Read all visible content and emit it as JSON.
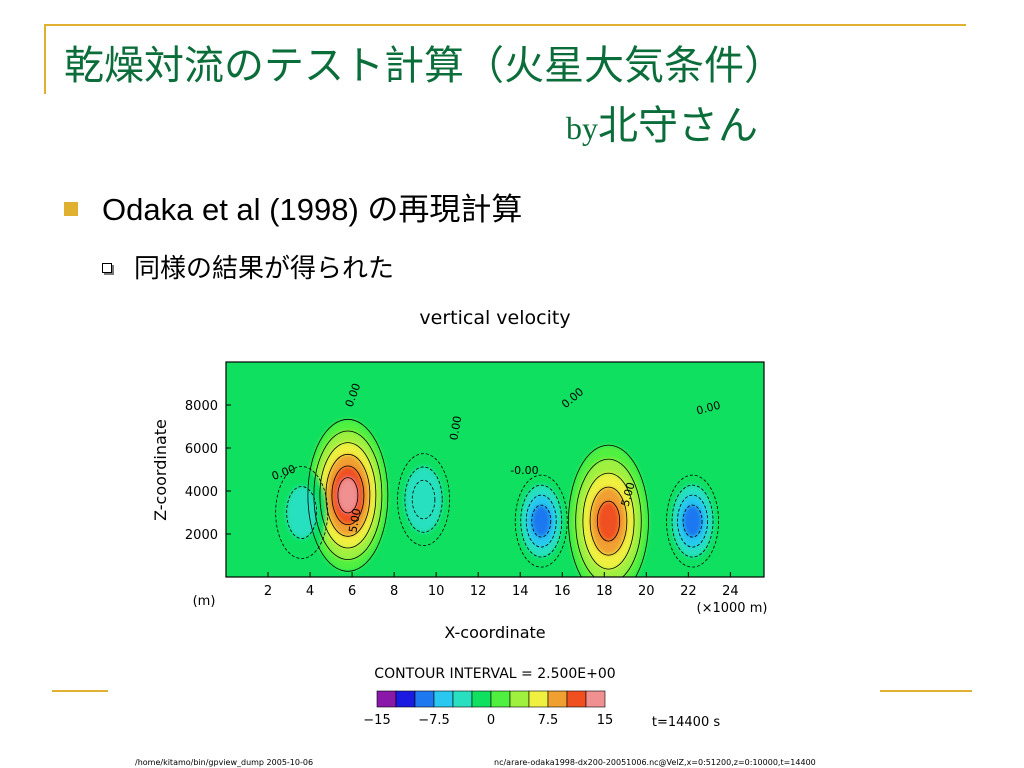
{
  "slide": {
    "title": "乾燥対流のテスト計算（火星大気条件）",
    "byline_by": "by",
    "byline_name": "北守さん",
    "bullet1": "Odaka et al (1998) の再現計算",
    "bullet2": "同様の結果が得られた"
  },
  "colors": {
    "title": "#0b6d3a",
    "accent": "#e0b030"
  },
  "chart_data": {
    "type": "contour",
    "title": "vertical velocity",
    "xlabel": "X-coordinate",
    "ylabel": "Z-coordinate",
    "x_unit_left": "(m)",
    "x_unit_right": "(×1000 m)",
    "xticks": [
      "2",
      "4",
      "6",
      "8",
      "10",
      "12",
      "14",
      "16",
      "18",
      "20",
      "22",
      "24"
    ],
    "yticks": [
      "2000",
      "4000",
      "6000",
      "8000"
    ],
    "xlim": [
      0,
      25.6
    ],
    "ylim": [
      0,
      10000
    ],
    "contour_interval_label": "CONTOUR INTERVAL = 2.500E+00",
    "contour_labels": [
      "0.00",
      "5.00",
      "-0.00"
    ],
    "colorbar": {
      "colors": [
        "#8a18a8",
        "#1a1ae0",
        "#1e78f0",
        "#28c8f0",
        "#28e0c0",
        "#10e060",
        "#50f040",
        "#a0f040",
        "#f0f040",
        "#f0a030",
        "#f05020",
        "#f09090"
      ],
      "tick_labels": [
        "−15",
        "−7.5",
        "0",
        "7.5",
        "15"
      ]
    },
    "time_label": "t=14400 s",
    "cells": [
      {
        "x": 5.8,
        "z": 3800,
        "w": -0.0,
        "peak": 14
      },
      {
        "x": 18.2,
        "z": 2600,
        "w": 0,
        "peak": 12
      },
      {
        "x": 15.0,
        "z": 2600,
        "w": 0,
        "peak": -9
      },
      {
        "x": 22.2,
        "z": 2600,
        "w": 0,
        "peak": -8
      },
      {
        "x": 3.6,
        "z": 3000,
        "w": 0,
        "peak": -4
      },
      {
        "x": 9.4,
        "z": 3600,
        "w": 0,
        "peak": -5
      }
    ]
  },
  "footer": {
    "left": "/home/kitamo/bin/gpview_dump   2005-10-06",
    "right": "nc/arare-odaka1998-dx200-20051006.nc@VelZ,x=0:51200,z=0:10000,t=14400"
  }
}
